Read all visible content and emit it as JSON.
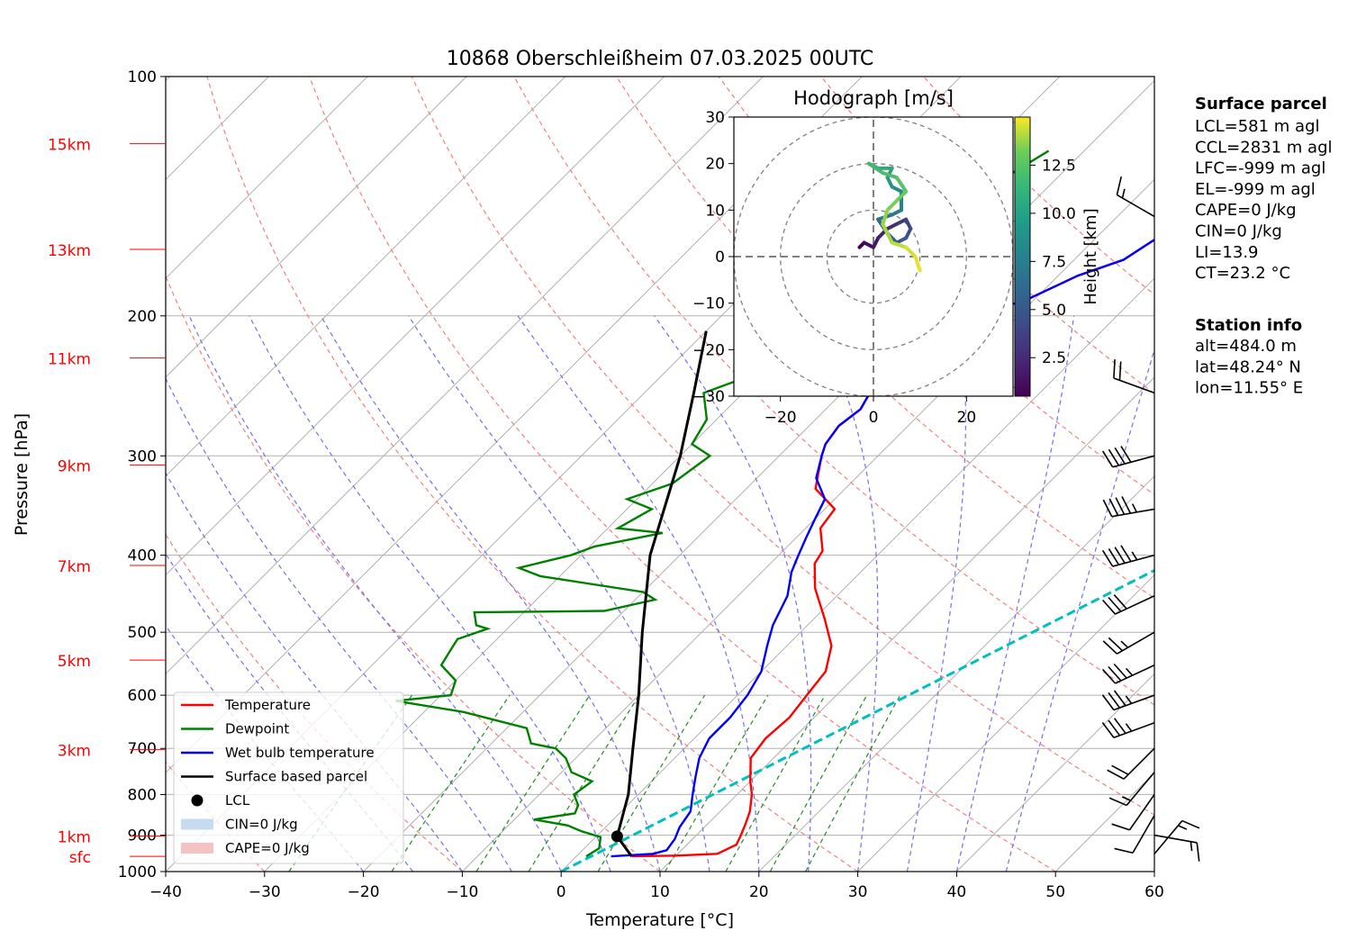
{
  "chart_data": {
    "type": "skew-t",
    "title": "10868 Oberschleißheim 07.03.2025 00UTC",
    "xlabel": "Temperature [°C]",
    "ylabel": "Pressure [hPa]",
    "xlim": [
      -40,
      60
    ],
    "ylim": [
      1000,
      100
    ],
    "x_ticks": [
      -40,
      -30,
      -20,
      -10,
      0,
      10,
      20,
      30,
      40,
      50,
      60
    ],
    "p_ticks": [
      100,
      200,
      300,
      400,
      500,
      600,
      700,
      800,
      900,
      1000
    ],
    "grid": true,
    "height_labels": [
      {
        "label": "15km",
        "p": 121.5
      },
      {
        "label": "13km",
        "p": 165
      },
      {
        "label": "11km",
        "p": 226
      },
      {
        "label": "9km",
        "p": 308
      },
      {
        "label": "7km",
        "p": 412
      },
      {
        "label": "5km",
        "p": 542
      },
      {
        "label": "3km",
        "p": 702
      },
      {
        "label": "1km",
        "p": 902
      },
      {
        "label": "sfc",
        "p": 957
      }
    ],
    "series": [
      {
        "name": "Temperature",
        "color": "#ff0000",
        "points": [
          [
            2.7,
            124
          ],
          [
            1.5,
            131
          ],
          [
            1.0,
            140
          ],
          [
            -1.8,
            152
          ],
          [
            -3.5,
            157
          ],
          [
            -5.0,
            170
          ],
          [
            -8.0,
            178
          ],
          [
            -11.0,
            192
          ],
          [
            -16.0,
            200
          ],
          [
            -17.0,
            210
          ],
          [
            -16.5,
            230
          ],
          [
            -17.5,
            245
          ],
          [
            -16.5,
            262
          ],
          [
            -17.0,
            275
          ],
          [
            -16.5,
            290
          ],
          [
            -15.7,
            300
          ],
          [
            -13.0,
            330
          ],
          [
            -9.0,
            350
          ],
          [
            -8.5,
            370
          ],
          [
            -6.0,
            395
          ],
          [
            -5.5,
            410
          ],
          [
            -3.0,
            440
          ],
          [
            1.0,
            480
          ],
          [
            4.5,
            520
          ],
          [
            6.5,
            560
          ],
          [
            7.0,
            600
          ],
          [
            7.5,
            640
          ],
          [
            7.2,
            680
          ],
          [
            7.7,
            720
          ],
          [
            10.0,
            770
          ],
          [
            11.5,
            800
          ],
          [
            13.0,
            840
          ],
          [
            13.8,
            870
          ],
          [
            14.5,
            900
          ],
          [
            15.0,
            925
          ],
          [
            14.0,
            950
          ],
          [
            10.0,
            955
          ],
          [
            5.6,
            957
          ]
        ]
      },
      {
        "name": "Dewpoint",
        "color": "#008000",
        "points": [
          [
            -23.6,
            124
          ],
          [
            -25.5,
            135
          ],
          [
            -26.0,
            145
          ],
          [
            -28.0,
            160
          ],
          [
            -31.0,
            175
          ],
          [
            -30.5,
            185
          ],
          [
            -27.5,
            193
          ],
          [
            -25.0,
            200
          ],
          [
            -28.0,
            208
          ],
          [
            -30.0,
            215
          ],
          [
            -29.0,
            230
          ],
          [
            -34.0,
            250
          ],
          [
            -31.0,
            270
          ],
          [
            -30.0,
            290
          ],
          [
            -27.0,
            300
          ],
          [
            -28.0,
            325
          ],
          [
            -31.0,
            340
          ],
          [
            -27.5,
            350
          ],
          [
            -29.0,
            370
          ],
          [
            -24.0,
            375
          ],
          [
            -29.5,
            390
          ],
          [
            -31.0,
            400
          ],
          [
            -35.0,
            415
          ],
          [
            -32.0,
            425
          ],
          [
            -20.0,
            445
          ],
          [
            -18.0,
            455
          ],
          [
            -22.0,
            470
          ],
          [
            -35.0,
            472
          ],
          [
            -33.5,
            490
          ],
          [
            -32.0,
            495
          ],
          [
            -34.0,
            510
          ],
          [
            -33.5,
            530
          ],
          [
            -33.0,
            550
          ],
          [
            -30.0,
            575
          ],
          [
            -29.0,
            600
          ],
          [
            -34.0,
            610
          ],
          [
            -26.0,
            630
          ],
          [
            -18.0,
            660
          ],
          [
            -16.0,
            690
          ],
          [
            -13.0,
            700
          ],
          [
            -11.0,
            720
          ],
          [
            -9.0,
            750
          ],
          [
            -6.0,
            770
          ],
          [
            -6.5,
            800
          ],
          [
            -5.0,
            825
          ],
          [
            -4.5,
            845
          ],
          [
            -8.0,
            860
          ],
          [
            -4.0,
            875
          ],
          [
            -2.0,
            890
          ],
          [
            0.5,
            905
          ],
          [
            1.5,
            935
          ],
          [
            1.0,
            957
          ]
        ]
      },
      {
        "name": "Wet bulb temperature",
        "color": "#0000ff",
        "points": [
          [
            2.7,
            124
          ],
          [
            1.5,
            131
          ],
          [
            1.0,
            140
          ],
          [
            -1.8,
            152
          ],
          [
            -3.5,
            157
          ],
          [
            -5.0,
            170
          ],
          [
            -8.0,
            178
          ],
          [
            -11.0,
            192
          ],
          [
            -16.0,
            200
          ],
          [
            -17.0,
            210
          ],
          [
            -16.5,
            230
          ],
          [
            -17.5,
            245
          ],
          [
            -16.5,
            262
          ],
          [
            -17.0,
            275
          ],
          [
            -16.5,
            290
          ],
          [
            -15.7,
            300
          ],
          [
            -14.0,
            320
          ],
          [
            -11.0,
            340
          ],
          [
            -10.0,
            360
          ],
          [
            -9.0,
            380
          ],
          [
            -8.0,
            400
          ],
          [
            -7.0,
            420
          ],
          [
            -5.0,
            450
          ],
          [
            -3.5,
            490
          ],
          [
            -2.0,
            520
          ],
          [
            0.0,
            560
          ],
          [
            1.0,
            600
          ],
          [
            1.5,
            640
          ],
          [
            1.5,
            680
          ],
          [
            2.5,
            720
          ],
          [
            4.0,
            760
          ],
          [
            5.5,
            800
          ],
          [
            7.0,
            840
          ],
          [
            7.5,
            880
          ],
          [
            8.2,
            910
          ],
          [
            8.5,
            940
          ],
          [
            7.5,
            950
          ],
          [
            3.5,
            957
          ]
        ]
      },
      {
        "name": "Surface based parcel",
        "color": "#000000",
        "points": [
          [
            5.6,
            957
          ],
          [
            2.1,
            903
          ],
          [
            -1.0,
            800
          ],
          [
            -5.2,
            700
          ],
          [
            -10.0,
            600
          ],
          [
            -16.0,
            500
          ],
          [
            -23.0,
            400
          ],
          [
            -30.0,
            300
          ],
          [
            -35.0,
            250
          ],
          [
            -40.0,
            209
          ]
        ]
      }
    ],
    "lcl": {
      "name": "LCL",
      "t": 2.1,
      "p": 903
    },
    "cyan_line": [
      [
        0,
        1000
      ],
      [
        60,
        170
      ]
    ],
    "legend": [
      {
        "label": "Temperature",
        "color": "#ff0000",
        "kind": "line"
      },
      {
        "label": "Dewpoint",
        "color": "#008000",
        "kind": "line"
      },
      {
        "label": "Wet bulb temperature",
        "color": "#0000ff",
        "kind": "line"
      },
      {
        "label": "Surface based parcel",
        "color": "#000000",
        "kind": "line"
      },
      {
        "label": "LCL",
        "color": "#000000",
        "kind": "dot"
      },
      {
        "label": "CIN=0 J/kg",
        "color": "#c6dbef",
        "kind": "patch"
      },
      {
        "label": "CAPE=0 J/kg",
        "color": "#f4c2c2",
        "kind": "patch"
      }
    ],
    "legend_position": "bottom-left",
    "hodograph": {
      "title": "Hodograph [m/s]",
      "xlim": [
        -30,
        30
      ],
      "ylim": [
        -30,
        30
      ],
      "ticks": [
        -20,
        0,
        20
      ],
      "y_ticks": [
        -30,
        -20,
        -10,
        0,
        10,
        20,
        30
      ],
      "rings": [
        10,
        20,
        30
      ],
      "colorbar_label": "Height [km]",
      "colorbar_ticks": [
        2.5,
        5.0,
        7.5,
        10.0,
        12.5
      ],
      "colorbar_range": [
        0.5,
        15
      ],
      "points": [
        [
          -3,
          2,
          0.5
        ],
        [
          -2,
          3,
          1.0
        ],
        [
          0,
          2,
          1.5
        ],
        [
          1,
          4,
          2.0
        ],
        [
          3,
          6,
          2.5
        ],
        [
          5,
          7,
          3.0
        ],
        [
          7,
          8,
          3.5
        ],
        [
          8,
          6,
          4.0
        ],
        [
          7,
          4,
          4.5
        ],
        [
          5,
          3,
          5.0
        ],
        [
          3,
          5,
          5.5
        ],
        [
          1,
          8,
          6.0
        ],
        [
          4,
          9,
          6.5
        ],
        [
          6,
          10,
          7.0
        ],
        [
          6,
          14,
          7.5
        ],
        [
          4,
          15,
          8.0
        ],
        [
          3,
          17,
          8.5
        ],
        [
          4,
          19,
          9.0
        ],
        [
          1,
          19,
          9.5
        ],
        [
          -1,
          20,
          10.0
        ],
        [
          2,
          18,
          10.5
        ],
        [
          5,
          17,
          11.0
        ],
        [
          7,
          14,
          11.5
        ],
        [
          5,
          12,
          12.0
        ],
        [
          3,
          10,
          12.5
        ],
        [
          2,
          7,
          13.0
        ],
        [
          4,
          3,
          13.5
        ],
        [
          7,
          2,
          14.0
        ],
        [
          9,
          0,
          14.5
        ],
        [
          10,
          -3,
          15.0
        ]
      ]
    },
    "barbs": [
      {
        "p": 150,
        "spd": 15,
        "dir": 300
      },
      {
        "p": 250,
        "spd": 20,
        "dir": 290
      },
      {
        "p": 300,
        "spd": 40,
        "dir": 255
      },
      {
        "p": 350,
        "spd": 45,
        "dir": 260
      },
      {
        "p": 400,
        "spd": 45,
        "dir": 255
      },
      {
        "p": 450,
        "spd": 30,
        "dir": 245
      },
      {
        "p": 500,
        "spd": 25,
        "dir": 240
      },
      {
        "p": 550,
        "spd": 35,
        "dir": 245
      },
      {
        "p": 600,
        "spd": 35,
        "dir": 250
      },
      {
        "p": 650,
        "spd": 35,
        "dir": 250
      },
      {
        "p": 700,
        "spd": 20,
        "dir": 225
      },
      {
        "p": 750,
        "spd": 15,
        "dir": 220
      },
      {
        "p": 800,
        "spd": 10,
        "dir": 215
      },
      {
        "p": 850,
        "spd": 10,
        "dir": 210
      },
      {
        "p": 900,
        "spd": 15,
        "dir": 100
      },
      {
        "p": 950,
        "spd": 15,
        "dir": 40
      }
    ]
  },
  "info": {
    "surface_title": "Surface parcel",
    "surface_lines": [
      "LCL=581 m agl",
      "CCL=2831 m agl",
      "LFC=-999 m agl",
      "EL=-999 m agl",
      "CAPE=0 J/kg",
      "CIN=0 J/kg",
      "LI=13.9",
      "CT=23.2 °C"
    ],
    "station_title": "Station info",
    "station_lines": [
      "alt=484.0 m",
      "lat=48.24° N",
      "lon=11.55° E"
    ]
  }
}
